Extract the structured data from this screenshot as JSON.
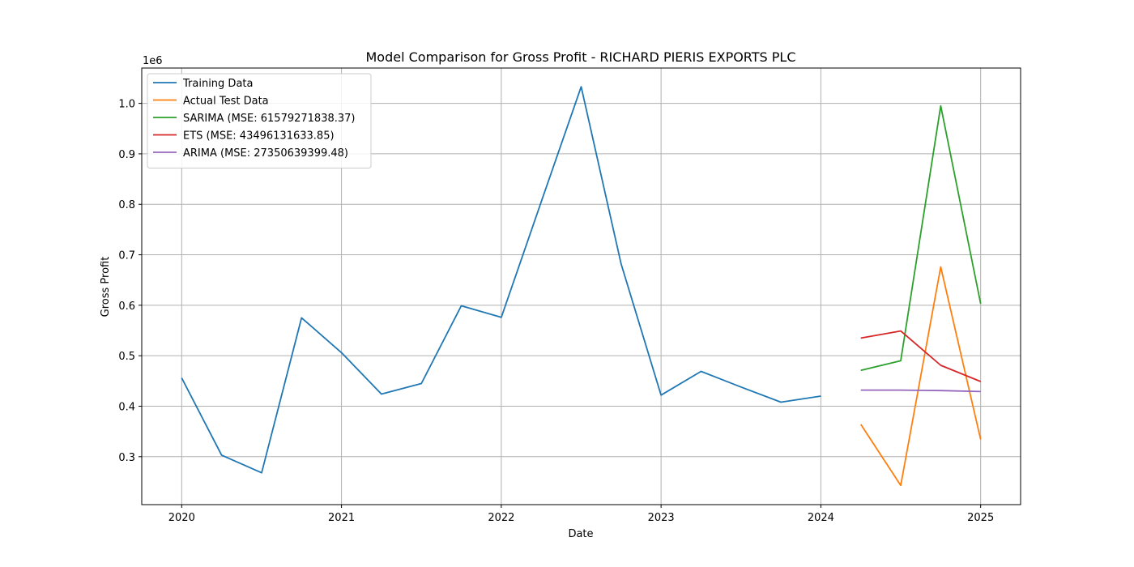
{
  "chart_data": {
    "type": "line",
    "title": "Model Comparison for Gross Profit - RICHARD PIERIS EXPORTS PLC",
    "xlabel": "Date",
    "ylabel": "Gross Profit",
    "y_offset_label": "1e6",
    "xlim": [
      2019.75,
      2025.25
    ],
    "ylim": [
      0.205,
      1.07
    ],
    "x_ticks": [
      2020,
      2021,
      2022,
      2023,
      2024,
      2025
    ],
    "x_tick_labels": [
      "2020",
      "2021",
      "2022",
      "2023",
      "2024",
      "2025"
    ],
    "y_ticks": [
      0.3,
      0.4,
      0.5,
      0.6,
      0.7,
      0.8,
      0.9,
      1.0
    ],
    "y_tick_labels": [
      "0.3",
      "0.4",
      "0.5",
      "0.6",
      "0.7",
      "0.8",
      "0.9",
      "1.0"
    ],
    "grid": true,
    "legend_position": "top-left",
    "series": [
      {
        "name": "Training Data",
        "color": "#1f77b4",
        "x": [
          2020.0,
          2020.25,
          2020.5,
          2020.75,
          2021.0,
          2021.25,
          2021.5,
          2021.75,
          2022.0,
          2022.25,
          2022.5,
          2022.75,
          2023.0,
          2023.25,
          2023.5,
          2023.75,
          2024.0
        ],
        "values": [
          0.456,
          0.303,
          0.268,
          0.575,
          0.506,
          0.424,
          0.445,
          0.599,
          0.576,
          0.805,
          1.033,
          0.682,
          0.422,
          0.469,
          0.438,
          0.408,
          0.42
        ]
      },
      {
        "name": "Actual Test Data",
        "color": "#ff7f0e",
        "x": [
          2024.25,
          2024.5,
          2024.75,
          2025.0
        ],
        "values": [
          0.364,
          0.243,
          0.676,
          0.334
        ]
      },
      {
        "name": "SARIMA (MSE: 61579271838.37)",
        "color": "#2ca02c",
        "x": [
          2024.25,
          2024.5,
          2024.75,
          2025.0
        ],
        "values": [
          0.471,
          0.49,
          0.995,
          0.603
        ]
      },
      {
        "name": "ETS (MSE: 43496131633.85)",
        "color": "#d62728",
        "x": [
          2024.25,
          2024.5,
          2024.75,
          2025.0
        ],
        "values": [
          0.535,
          0.549,
          0.481,
          0.449
        ]
      },
      {
        "name": "ARIMA (MSE: 27350639399.48)",
        "color": "#9467bd",
        "x": [
          2024.25,
          2024.5,
          2024.75,
          2025.0
        ],
        "values": [
          0.432,
          0.432,
          0.431,
          0.429
        ]
      }
    ]
  }
}
